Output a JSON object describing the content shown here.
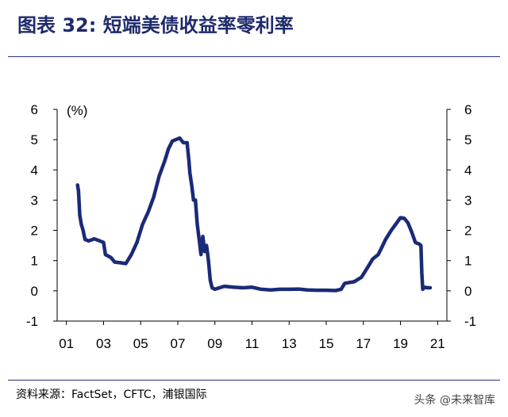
{
  "title": "图表 32: 短端美债收益率零利率",
  "source": "资料来源：FactSet，CFTC，浦银国际",
  "watermark": "头条 @未来智库",
  "chart_data": {
    "type": "line",
    "unit_label": "(%)",
    "ylim": [
      -1,
      6
    ],
    "xlim": [
      2000.5,
      2021.5
    ],
    "y_ticks": [
      "6",
      "5",
      "4",
      "3",
      "2",
      "1",
      "0",
      "-1"
    ],
    "y_tick_values": [
      6,
      5,
      4,
      3,
      2,
      1,
      0,
      -1
    ],
    "x_ticks": [
      "01",
      "03",
      "05",
      "07",
      "09",
      "11",
      "13",
      "15",
      "17",
      "19",
      "21"
    ],
    "x_tick_values": [
      2001,
      2003,
      2005,
      2007,
      2009,
      2011,
      2013,
      2015,
      2017,
      2019,
      2021
    ],
    "line_color": "#1a2a78",
    "grid": false,
    "series": [
      {
        "points": [
          [
            2001.6,
            3.5
          ],
          [
            2001.65,
            3.3
          ],
          [
            2001.72,
            2.5
          ],
          [
            2001.8,
            2.2
          ],
          [
            2001.9,
            2.0
          ],
          [
            2002.0,
            1.7
          ],
          [
            2002.2,
            1.65
          ],
          [
            2002.5,
            1.72
          ],
          [
            2002.8,
            1.65
          ],
          [
            2003.0,
            1.6
          ],
          [
            2003.1,
            1.2
          ],
          [
            2003.4,
            1.1
          ],
          [
            2003.6,
            0.95
          ],
          [
            2003.9,
            0.93
          ],
          [
            2004.2,
            0.9
          ],
          [
            2004.5,
            1.2
          ],
          [
            2004.8,
            1.6
          ],
          [
            2005.1,
            2.2
          ],
          [
            2005.4,
            2.6
          ],
          [
            2005.7,
            3.1
          ],
          [
            2006.0,
            3.8
          ],
          [
            2006.3,
            4.3
          ],
          [
            2006.5,
            4.7
          ],
          [
            2006.7,
            4.95
          ],
          [
            2006.9,
            5.0
          ],
          [
            2007.1,
            5.05
          ],
          [
            2007.3,
            4.9
          ],
          [
            2007.5,
            4.9
          ],
          [
            2007.6,
            4.3
          ],
          [
            2007.65,
            3.9
          ],
          [
            2007.75,
            3.5
          ],
          [
            2007.85,
            3.0
          ],
          [
            2007.95,
            3.0
          ],
          [
            2008.05,
            2.2
          ],
          [
            2008.15,
            1.7
          ],
          [
            2008.25,
            1.2
          ],
          [
            2008.35,
            1.8
          ],
          [
            2008.45,
            1.3
          ],
          [
            2008.55,
            1.5
          ],
          [
            2008.65,
            1.0
          ],
          [
            2008.75,
            0.35
          ],
          [
            2008.85,
            0.1
          ],
          [
            2009.0,
            0.05
          ],
          [
            2009.5,
            0.15
          ],
          [
            2010.0,
            0.12
          ],
          [
            2010.5,
            0.1
          ],
          [
            2011.0,
            0.12
          ],
          [
            2011.5,
            0.05
          ],
          [
            2012.0,
            0.03
          ],
          [
            2012.5,
            0.05
          ],
          [
            2013.0,
            0.05
          ],
          [
            2013.5,
            0.06
          ],
          [
            2014.0,
            0.03
          ],
          [
            2014.5,
            0.02
          ],
          [
            2015.0,
            0.02
          ],
          [
            2015.5,
            0.01
          ],
          [
            2015.8,
            0.05
          ],
          [
            2016.0,
            0.25
          ],
          [
            2016.5,
            0.3
          ],
          [
            2016.9,
            0.45
          ],
          [
            2017.2,
            0.75
          ],
          [
            2017.5,
            1.05
          ],
          [
            2017.8,
            1.2
          ],
          [
            2018.0,
            1.45
          ],
          [
            2018.2,
            1.7
          ],
          [
            2018.5,
            2.0
          ],
          [
            2018.8,
            2.25
          ],
          [
            2019.0,
            2.42
          ],
          [
            2019.2,
            2.4
          ],
          [
            2019.4,
            2.25
          ],
          [
            2019.6,
            1.95
          ],
          [
            2019.8,
            1.6
          ],
          [
            2020.0,
            1.55
          ],
          [
            2020.1,
            1.5
          ],
          [
            2020.15,
            0.6
          ],
          [
            2020.2,
            0.05
          ],
          [
            2020.3,
            0.12
          ],
          [
            2020.45,
            0.1
          ],
          [
            2020.6,
            0.1
          ]
        ]
      }
    ]
  }
}
